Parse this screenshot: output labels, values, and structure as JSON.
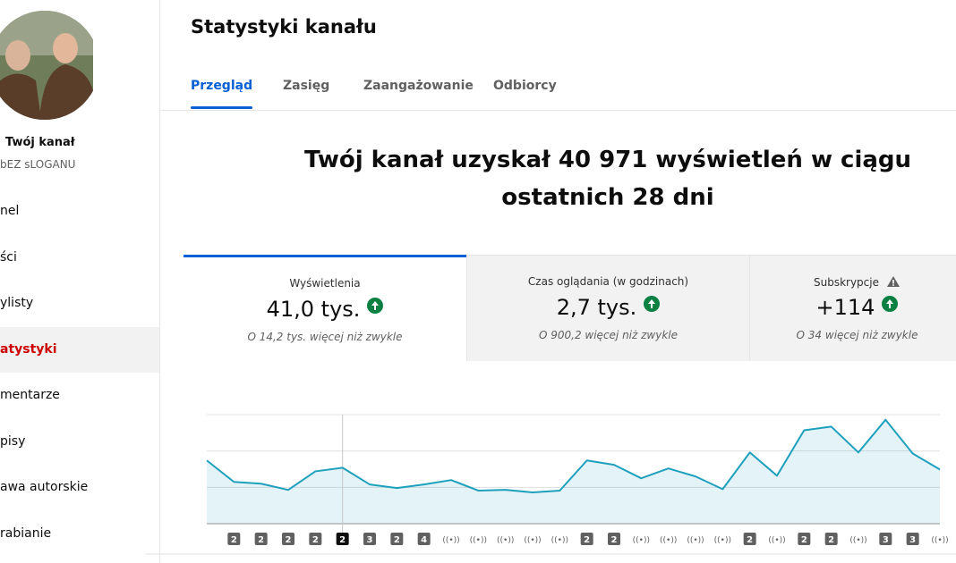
{
  "sidebar": {
    "channel_name": "Twój kanał",
    "slogan": "bEZ sLOGANU",
    "items": [
      "nel",
      "ści",
      "ylisty",
      "atystyki",
      "mentarze",
      "pisy",
      "awa autorskie",
      "rabianie"
    ],
    "active": 3
  },
  "header": {
    "title": "Statystyki kanału"
  },
  "tabs": {
    "items": [
      "Przegląd",
      "Zasięg",
      "Zaangażowanie",
      "Odbiorcy"
    ],
    "active": 0
  },
  "headline": "Twój kanał uzyskał 40 971 wyświetleń w ciągu ostatnich 28 dni",
  "cards": [
    {
      "label": "Wyświetlenia",
      "value": "41,0 tys.",
      "note": "O 14,2 tys. więcej niż zwykle"
    },
    {
      "label": "Czas oglądania (w godzinach)",
      "value": "2,7 tys.",
      "note": "O 900,2 więcej niż zwykle"
    },
    {
      "label": "Subskrypcje",
      "value": "+114",
      "note": "O 34 więcej niż zwykle"
    }
  ],
  "chart": {
    "type": "line",
    "color": "#1ea0bd",
    "values": [
      1740,
      1150,
      1100,
      930,
      1440,
      1540,
      1080,
      980,
      1080,
      1200,
      910,
      930,
      860,
      910,
      1740,
      1620,
      1250,
      1520,
      1300,
      950,
      1960,
      1320,
      2570,
      2670,
      1960,
      2860,
      1930,
      1490
    ],
    "ylim": [
      0,
      3000
    ],
    "yticks": [
      1000,
      2000,
      3000
    ],
    "grid": true,
    "markers": [
      null,
      "2",
      "2",
      "2",
      "2",
      "2",
      "3",
      "2",
      "4",
      "((•))",
      "((•))",
      "((•))",
      "((•))",
      "((•))",
      "2",
      "2",
      "((•))",
      "((•))",
      "((•))",
      "((•))",
      "2",
      "((•))",
      "2",
      "2",
      "((•))",
      "3",
      "3",
      "((•))"
    ],
    "selected": 5
  }
}
